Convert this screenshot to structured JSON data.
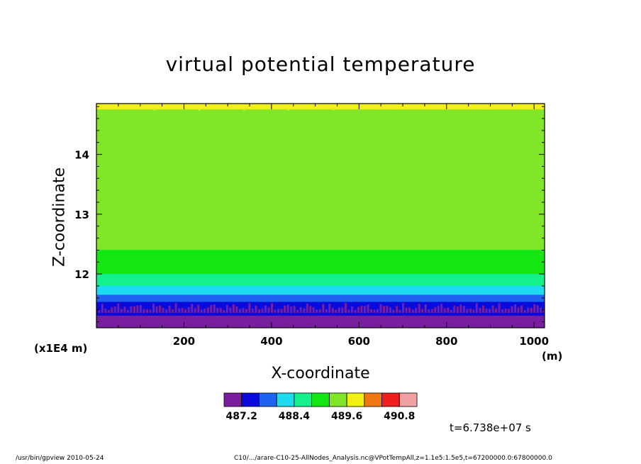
{
  "chart_data": {
    "type": "heatmap",
    "title": "virtual potential temperature",
    "xlabel": "X-coordinate",
    "x_unit": "(m)",
    "ylabel": "Z-coordinate",
    "y_scale_label": "(x1E4 m)",
    "xlim": [
      0,
      1024
    ],
    "ylim": [
      11.1,
      14.85
    ],
    "x_ticks": [
      200,
      400,
      600,
      800,
      1000
    ],
    "y_ticks": [
      12,
      13,
      14
    ],
    "bands": [
      {
        "z_min": 11.1,
        "z_max": 11.35,
        "color": "#7a1ea0"
      },
      {
        "z_min": 11.35,
        "z_max": 11.58,
        "color": "#0a0adc"
      },
      {
        "z_min": 11.58,
        "z_max": 11.7,
        "color": "#1e64f0"
      },
      {
        "z_min": 11.7,
        "z_max": 11.85,
        "color": "#1edcf0"
      },
      {
        "z_min": 11.85,
        "z_max": 12.05,
        "color": "#14f08c"
      },
      {
        "z_min": 12.05,
        "z_max": 12.45,
        "color": "#14e614"
      },
      {
        "z_min": 12.45,
        "z_max": 14.8,
        "color": "#82e628"
      },
      {
        "z_min": 14.8,
        "z_max": 14.85,
        "color": "#f0f014"
      }
    ],
    "colorbar": {
      "colors": [
        "#7a1ea0",
        "#0a0adc",
        "#1e64f0",
        "#1edcf0",
        "#14f08c",
        "#14e614",
        "#82e628",
        "#f0f014",
        "#f07814",
        "#f01e1e",
        "#f0a0a0"
      ],
      "labels": [
        "487.2",
        "488.4",
        "489.6",
        "490.8"
      ]
    },
    "grid": false
  },
  "time_label": "t=6.738e+07 s",
  "footer": {
    "left": "/usr/bin/gpview   2010-05-24",
    "right": "C10/.../arare-C10-25-AllNodes_Analysis.nc@VPotTempAll,z=1.1e5:1.5e5,t=67200000.0:67800000.0"
  }
}
